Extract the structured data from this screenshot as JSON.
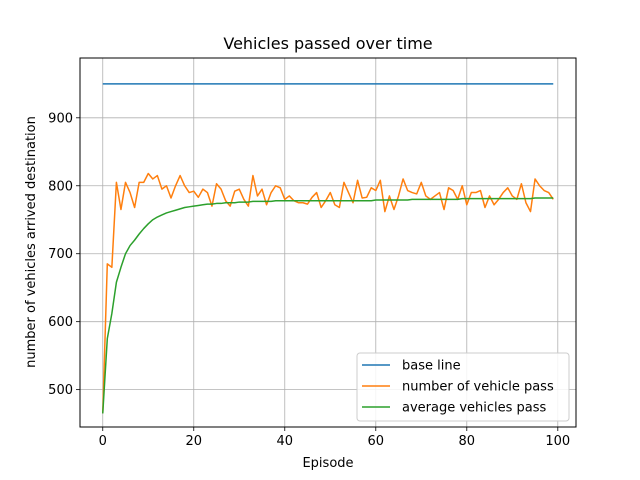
{
  "chart_data": {
    "type": "line",
    "title": "Vehicles passed over time",
    "xlabel": "Episode",
    "ylabel": "number of vehicles arrived destination",
    "xlim": [
      -5,
      104
    ],
    "ylim": [
      445,
      988
    ],
    "xticks": [
      0,
      20,
      40,
      60,
      80,
      100
    ],
    "yticks": [
      500,
      600,
      700,
      800,
      900
    ],
    "grid": true,
    "legend_position": "lower-right",
    "series": [
      {
        "name": "base line",
        "color": "#1f77b4",
        "x": [
          0,
          99
        ],
        "y": [
          950,
          950
        ]
      },
      {
        "name": "number of vehicle pass",
        "color": "#ff7f0e",
        "x": [
          0,
          1,
          2,
          3,
          4,
          5,
          6,
          7,
          8,
          9,
          10,
          11,
          12,
          13,
          14,
          15,
          16,
          17,
          18,
          19,
          20,
          21,
          22,
          23,
          24,
          25,
          26,
          27,
          28,
          29,
          30,
          31,
          32,
          33,
          34,
          35,
          36,
          37,
          38,
          39,
          40,
          41,
          42,
          43,
          44,
          45,
          46,
          47,
          48,
          49,
          50,
          51,
          52,
          53,
          54,
          55,
          56,
          57,
          58,
          59,
          60,
          61,
          62,
          63,
          64,
          65,
          66,
          67,
          68,
          69,
          70,
          71,
          72,
          73,
          74,
          75,
          76,
          77,
          78,
          79,
          80,
          81,
          82,
          83,
          84,
          85,
          86,
          87,
          88,
          89,
          90,
          91,
          92,
          93,
          94,
          95,
          96,
          97,
          98,
          99
        ],
        "y": [
          465,
          685,
          680,
          805,
          765,
          805,
          790,
          768,
          805,
          805,
          818,
          810,
          815,
          795,
          800,
          782,
          800,
          815,
          800,
          790,
          792,
          783,
          795,
          790,
          770,
          803,
          795,
          778,
          770,
          792,
          795,
          780,
          770,
          815,
          785,
          795,
          772,
          790,
          800,
          797,
          780,
          785,
          778,
          775,
          775,
          773,
          783,
          790,
          768,
          778,
          790,
          772,
          768,
          805,
          790,
          775,
          808,
          782,
          783,
          797,
          793,
          808,
          762,
          785,
          765,
          785,
          810,
          793,
          790,
          788,
          805,
          785,
          780,
          785,
          790,
          765,
          797,
          793,
          780,
          800,
          772,
          790,
          790,
          793,
          768,
          785,
          772,
          780,
          790,
          797,
          785,
          780,
          803,
          775,
          762,
          810,
          800,
          793,
          790,
          780
        ]
      },
      {
        "name": "average vehicles pass",
        "color": "#2ca02c",
        "x": [
          0,
          1,
          2,
          3,
          4,
          5,
          6,
          7,
          8,
          9,
          10,
          11,
          12,
          13,
          14,
          15,
          16,
          17,
          18,
          19,
          20,
          21,
          22,
          23,
          24,
          25,
          26,
          27,
          28,
          29,
          30,
          31,
          32,
          33,
          34,
          35,
          36,
          37,
          38,
          39,
          40,
          41,
          42,
          43,
          44,
          45,
          46,
          47,
          48,
          49,
          50,
          51,
          52,
          53,
          54,
          55,
          56,
          57,
          58,
          59,
          60,
          61,
          62,
          63,
          64,
          65,
          66,
          67,
          68,
          69,
          70,
          71,
          72,
          73,
          74,
          75,
          76,
          77,
          78,
          79,
          80,
          81,
          82,
          83,
          84,
          85,
          86,
          87,
          88,
          89,
          90,
          91,
          92,
          93,
          94,
          95,
          96,
          97,
          98,
          99
        ],
        "y": [
          465,
          575,
          612,
          658,
          680,
          700,
          712,
          720,
          729,
          737,
          744,
          750,
          754,
          757,
          760,
          762,
          764,
          766,
          768,
          769,
          770,
          771,
          772,
          773,
          773,
          774,
          774,
          775,
          775,
          775,
          776,
          776,
          776,
          777,
          777,
          777,
          777,
          777,
          778,
          778,
          778,
          778,
          778,
          778,
          778,
          778,
          778,
          778,
          778,
          778,
          778,
          778,
          778,
          778,
          778,
          778,
          778,
          778,
          778,
          778,
          779,
          779,
          779,
          779,
          779,
          779,
          779,
          779,
          780,
          780,
          780,
          780,
          780,
          780,
          780,
          780,
          780,
          780,
          780,
          781,
          781,
          781,
          781,
          781,
          781,
          781,
          781,
          781,
          781,
          781,
          781,
          781,
          781,
          781,
          781,
          782,
          782,
          782,
          782,
          782
        ]
      }
    ]
  }
}
